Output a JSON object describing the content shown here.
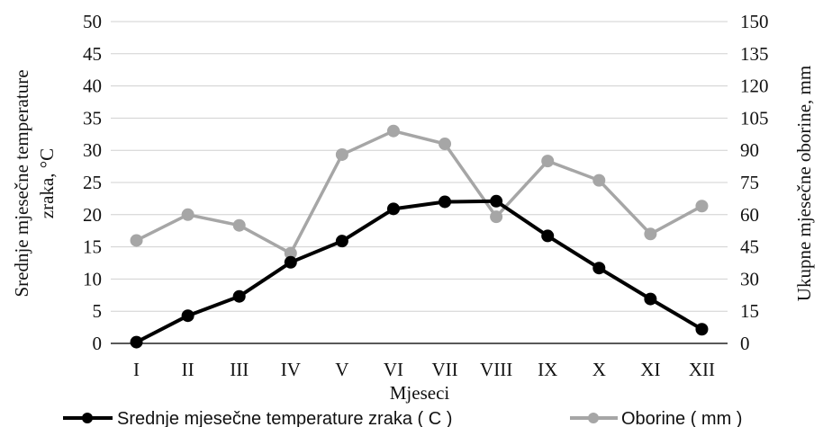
{
  "chart_data": {
    "type": "line",
    "categories": [
      "I",
      "II",
      "III",
      "IV",
      "V",
      "VI",
      "VII",
      "VIII",
      "IX",
      "X",
      "XI",
      "XII"
    ],
    "xlabel": "Mjeseci",
    "ylabel_left": "Srednje mjesečne temperature zraka, °C",
    "ylabel_left_lines": [
      "Srednje mjesečne temperature",
      "zraka, °C"
    ],
    "ylabel_right": "Ukupne mjesečne oborine, mm",
    "ylim_left": [
      0,
      50
    ],
    "yticks_left": [
      "0",
      "5",
      "10",
      "15",
      "20",
      "25",
      "30",
      "35",
      "40",
      "45",
      "50"
    ],
    "ylim_right": [
      0,
      150
    ],
    "yticks_right": [
      "0",
      "15",
      "30",
      "45",
      "60",
      "75",
      "90",
      "105",
      "120",
      "135",
      "150"
    ],
    "grid": true,
    "legend_position": "bottom",
    "series": [
      {
        "name": "Srednje mjesečne temperature zraka ( C )",
        "axis": "left",
        "color": "#000000",
        "values": [
          0.2,
          4.3,
          7.3,
          12.6,
          15.9,
          20.9,
          22.0,
          22.1,
          16.7,
          11.7,
          6.9,
          2.2
        ]
      },
      {
        "name": "Oborine ( mm )",
        "axis": "right",
        "color": "#a6a6a6",
        "values": [
          48,
          60,
          55,
          42,
          88,
          99,
          93,
          59,
          85,
          76,
          51,
          64
        ]
      }
    ]
  }
}
